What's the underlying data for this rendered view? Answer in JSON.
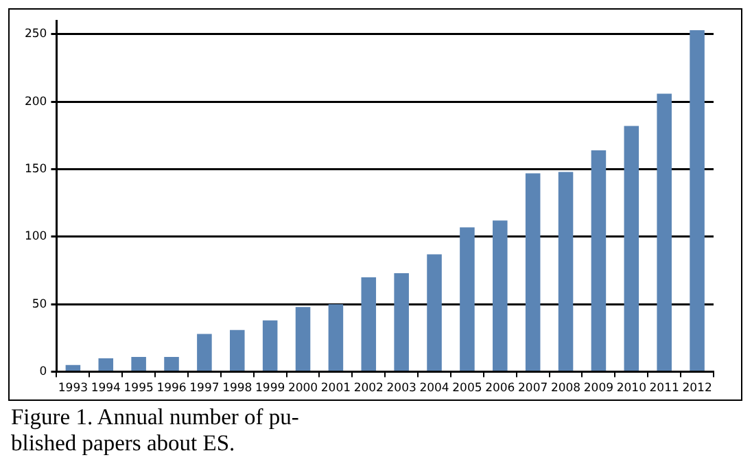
{
  "chart_data": {
    "type": "bar",
    "annotations": [
      "Figure 1. Annual number of pu-blished papers about ES."
    ],
    "categories": [
      "1993",
      "1994",
      "1995",
      "1996",
      "1997",
      "1998",
      "1999",
      "2000",
      "2001",
      "2002",
      "2003",
      "2004",
      "2005",
      "2006",
      "2007",
      "2008",
      "2009",
      "2010",
      "2011",
      "2012"
    ],
    "values": [
      5,
      10,
      11,
      11,
      28,
      31,
      38,
      48,
      50,
      70,
      73,
      87,
      107,
      112,
      147,
      148,
      164,
      182,
      206,
      253
    ],
    "color": "#5b85b5",
    "ylim": [
      0,
      260
    ],
    "yticks": [
      0,
      50,
      100,
      150,
      200,
      250
    ],
    "grid": "y"
  }
}
